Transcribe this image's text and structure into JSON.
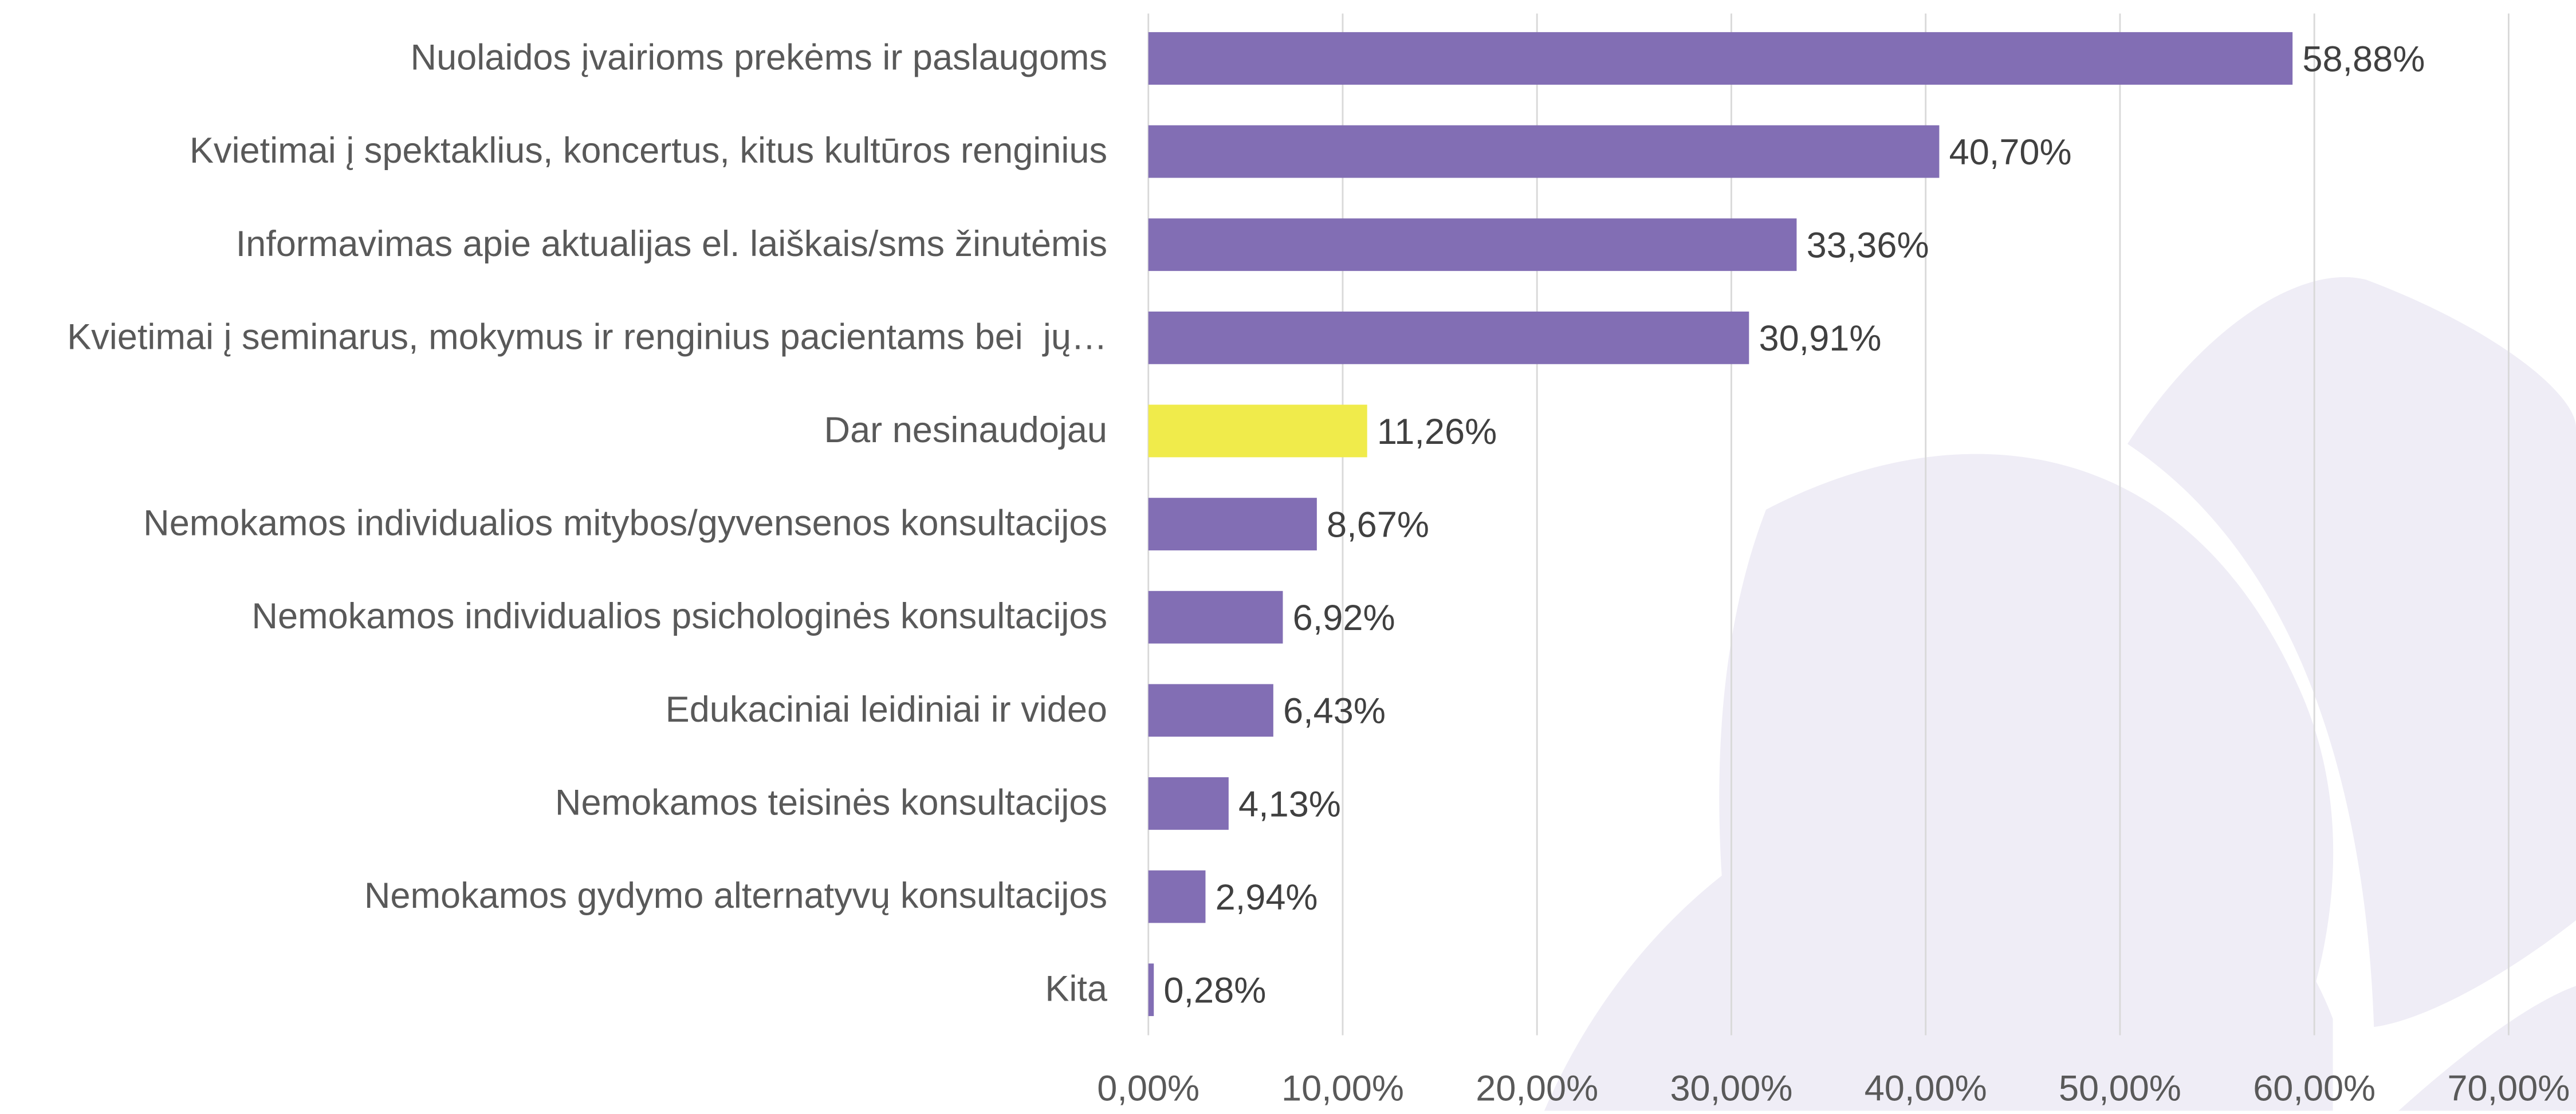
{
  "chart_data": {
    "type": "bar",
    "orientation": "horizontal",
    "categories": [
      "Nuolaidos įvairioms prekėms ir paslaugoms",
      "Kvietimai į spektaklius, koncertus, kitus kultūros renginius",
      "Informavimas apie aktualijas el. laiškais/sms žinutėmis",
      "Kvietimai į seminarus, mokymus ir renginius pacientams bei  jų…",
      "Dar nesinaudojau",
      "Nemokamos individualios mitybos/gyvensenos konsultacijos",
      "Nemokamos individualios psichologinės konsultacijos",
      "Edukaciniai leidiniai ir video",
      "Nemokamos teisinės konsultacijos",
      "Nemokamos gydymo alternatyvų konsultacijos",
      "Kita"
    ],
    "values": [
      58.88,
      40.7,
      33.36,
      30.91,
      11.26,
      8.67,
      6.92,
      6.43,
      4.13,
      2.94,
      0.28
    ],
    "value_labels": [
      "58,88%",
      "40,70%",
      "33,36%",
      "30,91%",
      "11,26%",
      "8,67%",
      "6,92%",
      "6,43%",
      "4,13%",
      "2,94%",
      "0,28%"
    ],
    "colors": [
      "#826eb4",
      "#826eb4",
      "#826eb4",
      "#826eb4",
      "#f0eb4b",
      "#826eb4",
      "#826eb4",
      "#826eb4",
      "#826eb4",
      "#826eb4",
      "#826eb4"
    ],
    "xlim": [
      0,
      70
    ],
    "xticks": [
      {
        "value": 0,
        "label": "0,00%"
      },
      {
        "value": 10,
        "label": "10,00%"
      },
      {
        "value": 20,
        "label": "20,00%"
      },
      {
        "value": 30,
        "label": "30,00%"
      },
      {
        "value": 40,
        "label": "40,00%"
      },
      {
        "value": 50,
        "label": "50,00%"
      },
      {
        "value": 60,
        "label": "60,00%"
      },
      {
        "value": 70,
        "label": "70,00%"
      }
    ],
    "grid": true
  }
}
